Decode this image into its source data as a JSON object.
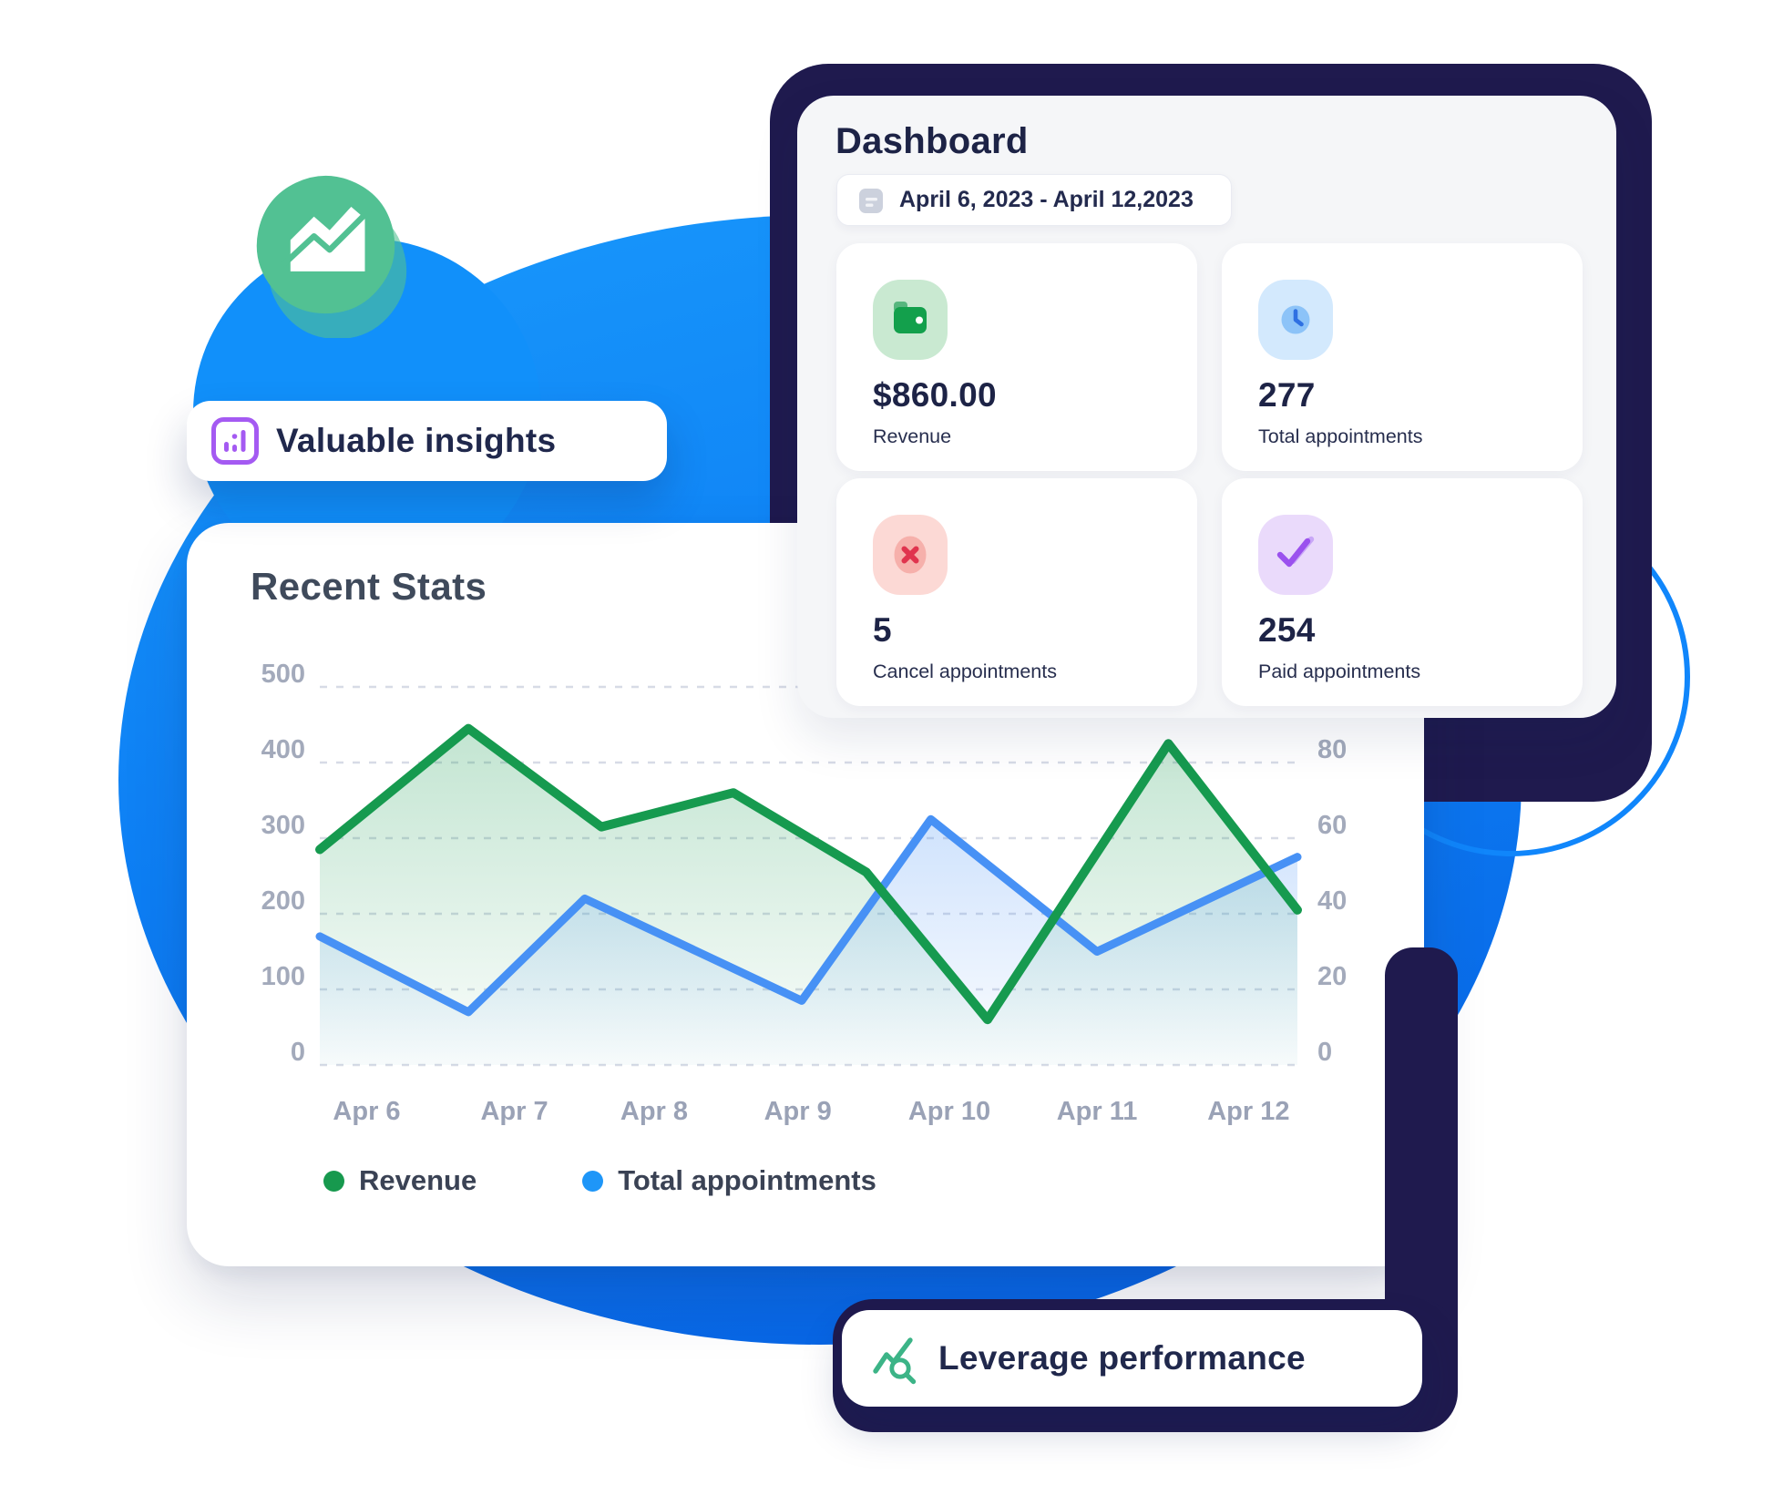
{
  "decor": {
    "blob_gradient_top": "#1897fb",
    "blob_gradient_bottom": "#0762e3",
    "ring_color": "#1086fb",
    "navy_color": "#1f1a4e",
    "badge_green": "#52c193"
  },
  "insights_pill": {
    "label": "Valuable insights",
    "icon": "bar-chart-icon",
    "icon_color": "#a45af2"
  },
  "performance_pill": {
    "label": "Leverage performance",
    "icon": "trend-search-icon",
    "icon_color": "#3cb487"
  },
  "dashboard": {
    "title": "Dashboard",
    "date_range": {
      "icon": "calendar-icon",
      "text": "April 6, 2023 - April 12,2023"
    },
    "stats": [
      {
        "value": "$860.00",
        "label": "Revenue",
        "icon": "wallet-icon",
        "icon_bg": "#c9e9d1",
        "icon_color": "#13a04c"
      },
      {
        "value": "277",
        "label": "Total appointments",
        "icon": "clock-icon",
        "icon_bg": "#d3e9fd",
        "icon_color": "#2e70e2"
      },
      {
        "value": "5",
        "label": "Cancel appointments",
        "icon": "cancel-icon",
        "icon_bg": "#fcd9d5",
        "icon_color": "#e0344e"
      },
      {
        "value": "254",
        "label": "Paid appointments",
        "icon": "double-check-icon",
        "icon_bg": "#eadafb",
        "icon_color": "#9b51ee"
      }
    ]
  },
  "chart_data": {
    "type": "area",
    "title": "Recent Stats",
    "categories": [
      "Apr 6",
      "Apr 7",
      "Apr 8",
      "Apr 9",
      "Apr 10",
      "Apr 11",
      "Apr 12"
    ],
    "category_x": [
      0.048,
      0.199,
      0.342,
      0.489,
      0.644,
      0.795,
      0.95
    ],
    "left_axis": {
      "ticks": [
        500,
        400,
        300,
        200,
        100,
        0
      ],
      "max": 500
    },
    "right_axis": {
      "ticks": [
        80,
        60,
        40,
        20,
        0
      ],
      "max": 100
    },
    "grid": "dashed-horizontal",
    "legend_position": "bottom-left",
    "series": [
      {
        "name": "Revenue",
        "axis": "left",
        "color": "#169a4f",
        "legend_dot": "#17994e",
        "line_width": 10,
        "points": [
          [
            0,
            285
          ],
          [
            0.152,
            445
          ],
          [
            0.288,
            315
          ],
          [
            0.423,
            360
          ],
          [
            0.559,
            255
          ],
          [
            0.683,
            60
          ],
          [
            0.868,
            425
          ],
          [
            1,
            205
          ]
        ]
      },
      {
        "name": "Total appointments",
        "axis": "right",
        "color": "#4791f5",
        "legend_dot": "#1e96f8",
        "line_width": 9,
        "points": [
          [
            0,
            34
          ],
          [
            0.152,
            14
          ],
          [
            0.271,
            44
          ],
          [
            0.493,
            17
          ],
          [
            0.625,
            65
          ],
          [
            0.795,
            30
          ],
          [
            1,
            55
          ]
        ]
      }
    ]
  }
}
